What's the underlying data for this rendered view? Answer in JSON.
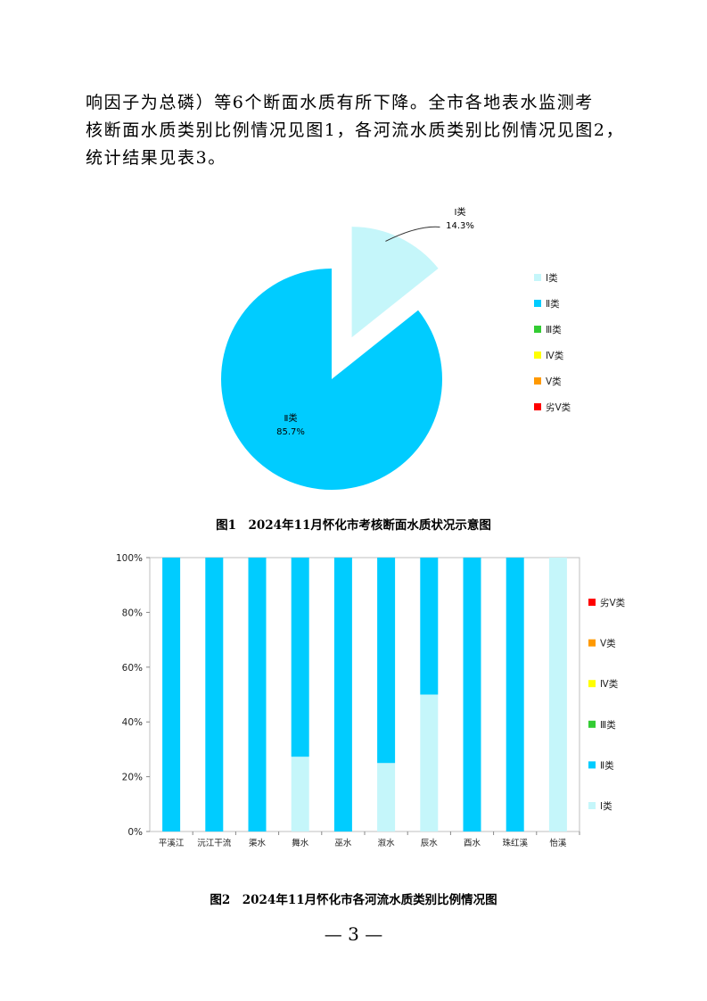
{
  "paragraph": {
    "lines": [
      "响因子为总磷）等6个断面水质有所下降。全市各地表水监测考",
      "核断面水质类别比例情况见图1，各河流水质类别比例情况见图2，",
      "统计结果见表3。"
    ]
  },
  "figure1": {
    "caption": "图1　2024年11月怀化市考核断面水质状况示意图",
    "legend": [
      "Ⅰ类",
      "Ⅱ类",
      "Ⅲ类",
      "Ⅳ类",
      "Ⅴ类",
      "劣Ⅴ类"
    ],
    "slice_labels": {
      "class1": {
        "name": "Ⅰ类",
        "pct": "14.3%"
      },
      "class2": {
        "name": "Ⅱ类",
        "pct": "85.7%"
      }
    }
  },
  "figure2": {
    "caption": "图2　2024年11月怀化市各河流水质类别比例情况图",
    "y_ticks": [
      "0%",
      "20%",
      "40%",
      "60%",
      "80%",
      "100%"
    ],
    "legend": [
      "劣Ⅴ类",
      "Ⅴ类",
      "Ⅳ类",
      "Ⅲ类",
      "Ⅱ类",
      "Ⅰ类"
    ]
  },
  "page_number": "— 3 —",
  "colors": {
    "class1": "#c5f6fa",
    "class2": "#00ccff",
    "class3": "#33cc33",
    "class4": "#ffff00",
    "class5": "#ff9900",
    "class6": "#ff0000"
  },
  "chart_data": [
    {
      "type": "pie",
      "categories": [
        "Ⅰ类",
        "Ⅱ类",
        "Ⅲ类",
        "Ⅳ类",
        "Ⅴ类",
        "劣Ⅴ类"
      ],
      "values": [
        14.3,
        85.7,
        0,
        0,
        0,
        0
      ],
      "legend_position": "right"
    },
    {
      "type": "bar",
      "stacked": true,
      "categories": [
        "平溪江",
        "沅江干流",
        "渠水",
        "舞水",
        "巫水",
        "溆水",
        "辰水",
        "酉水",
        "珠红溪",
        "怡溪"
      ],
      "series": [
        {
          "name": "Ⅰ类",
          "values": [
            0,
            0,
            0,
            27.3,
            0,
            25,
            50,
            0,
            0,
            100
          ]
        },
        {
          "name": "Ⅱ类",
          "values": [
            100,
            100,
            100,
            72.7,
            100,
            75,
            50,
            100,
            100,
            0
          ]
        },
        {
          "name": "Ⅲ类",
          "values": [
            0,
            0,
            0,
            0,
            0,
            0,
            0,
            0,
            0,
            0
          ]
        },
        {
          "name": "Ⅳ类",
          "values": [
            0,
            0,
            0,
            0,
            0,
            0,
            0,
            0,
            0,
            0
          ]
        },
        {
          "name": "Ⅴ类",
          "values": [
            0,
            0,
            0,
            0,
            0,
            0,
            0,
            0,
            0,
            0
          ]
        },
        {
          "name": "劣Ⅴ类",
          "values": [
            0,
            0,
            0,
            0,
            0,
            0,
            0,
            0,
            0,
            0
          ]
        }
      ],
      "ylim": [
        0,
        100
      ],
      "legend_position": "right"
    }
  ]
}
